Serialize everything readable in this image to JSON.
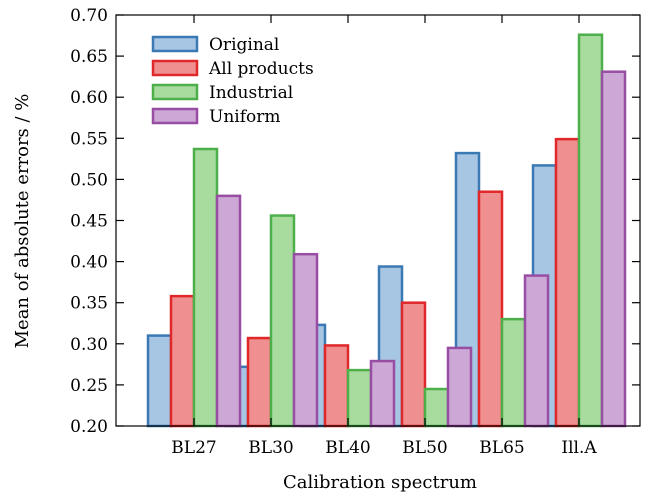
{
  "chart_data": {
    "type": "bar",
    "title": "",
    "xlabel": "Calibration spectrum",
    "ylabel": "Mean of absolute errors / %",
    "ylim": [
      0.2,
      0.7
    ],
    "yticks": [
      "0.20",
      "0.25",
      "0.30",
      "0.35",
      "0.40",
      "0.45",
      "0.50",
      "0.55",
      "0.60",
      "0.65",
      "0.70"
    ],
    "categories": [
      "BL27",
      "BL30",
      "BL40",
      "BL50",
      "BL65",
      "Ill.A"
    ],
    "grid": false,
    "legend_position": "top-left",
    "series": [
      {
        "name": "Original",
        "fill": "#a7c6e3",
        "stroke": "#3b79b3",
        "values": [
          0.31,
          0.272,
          0.323,
          0.394,
          0.532,
          0.517
        ]
      },
      {
        "name": "All products",
        "fill": "#f08f8f",
        "stroke": "#e0282a",
        "values": [
          0.358,
          0.307,
          0.298,
          0.35,
          0.485,
          0.549
        ]
      },
      {
        "name": "Industrial",
        "fill": "#a8dc9f",
        "stroke": "#4daf4a",
        "values": [
          0.537,
          0.456,
          0.268,
          0.245,
          0.33,
          0.676
        ]
      },
      {
        "name": "Uniform",
        "fill": "#cda7d6",
        "stroke": "#984ea3",
        "values": [
          0.48,
          0.409,
          0.279,
          0.295,
          0.383,
          0.631
        ]
      }
    ]
  }
}
